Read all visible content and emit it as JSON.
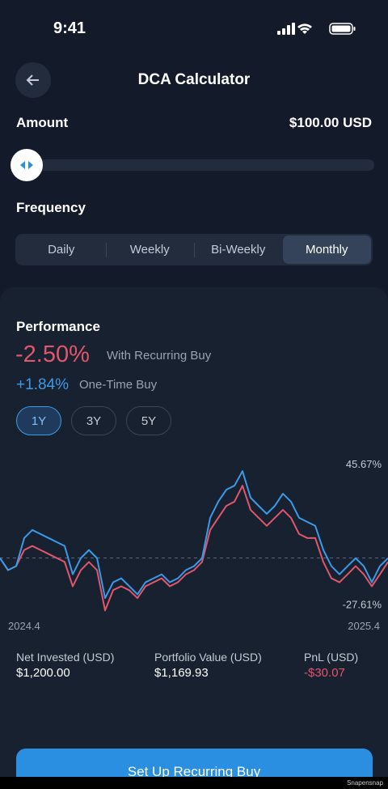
{
  "status": {
    "time": "9:41"
  },
  "header": {
    "title": "DCA Calculator"
  },
  "amount": {
    "label": "Amount",
    "value": "$100.00 USD"
  },
  "frequency": {
    "label": "Frequency",
    "options": [
      "Daily",
      "Weekly",
      "Bi-Weekly",
      "Monthly"
    ],
    "selected": 3
  },
  "performance": {
    "title": "Performance",
    "recurring": {
      "value": "-2.50%",
      "label": "With Recurring Buy"
    },
    "one_time": {
      "value": "+1.84%",
      "label": "One-Time Buy"
    },
    "periods": [
      "1Y",
      "3Y",
      "5Y"
    ],
    "selected_period": 0
  },
  "chart_data": {
    "type": "line",
    "categories": [
      "2024.4",
      null,
      null,
      null,
      null,
      null,
      null,
      null,
      null,
      null,
      null,
      null,
      null,
      null,
      null,
      null,
      null,
      null,
      null,
      null,
      null,
      null,
      null,
      null,
      null,
      null,
      null,
      null,
      null,
      null,
      null,
      null,
      null,
      null,
      null,
      null,
      null,
      null,
      null,
      null,
      null,
      null,
      null,
      null,
      null,
      null,
      null,
      null,
      "2025.4"
    ],
    "series": [
      {
        "color": "#e0566b",
        "values": [
          -0.1,
          -6.4,
          -4.3,
          4.2,
          6.3,
          4.2,
          2.1,
          0,
          -2.1,
          -14.9,
          -6.4,
          -2.1,
          -6.4,
          -27.61,
          -16.9,
          -14.9,
          -17.0,
          -21.1,
          -14.9,
          -12.8,
          -10.7,
          -14.9,
          -12.8,
          -8.6,
          -6.4,
          -2.1,
          14.7,
          21.1,
          27.4,
          29.6,
          38.0,
          25.3,
          21.1,
          16.9,
          21.1,
          25.3,
          21.1,
          12.6,
          10.5,
          10.5,
          -2.1,
          -10.7,
          -12.8,
          -8.6,
          -4.3,
          -8.6,
          -14.9,
          -8.6,
          -2.1
        ]
      },
      {
        "color": "#3b9ae8",
        "values": [
          -0.1,
          -6.4,
          -4.3,
          10.5,
          14.7,
          12.6,
          10.5,
          8.4,
          6.3,
          -8.6,
          -0.1,
          4.2,
          -0.1,
          -21.1,
          -12.8,
          -10.7,
          -14.9,
          -19.1,
          -12.8,
          -10.7,
          -8.6,
          -12.8,
          -10.7,
          -6.4,
          -4.3,
          -0.1,
          21.1,
          29.6,
          35.9,
          38.0,
          45.67,
          31.7,
          27.4,
          23.2,
          27.4,
          33.8,
          29.6,
          21.1,
          19.0,
          16.9,
          4.2,
          -4.3,
          -8.6,
          -4.3,
          -0.1,
          -4.3,
          -12.8,
          -4.3,
          -0.1
        ]
      }
    ],
    "ylim": [
      -30,
      50
    ],
    "yticks": [
      {
        "value": 45.67,
        "label": "45.67%"
      },
      {
        "value": -27.61,
        "label": "-27.61%"
      }
    ]
  },
  "stats": [
    {
      "label": "Net Invested (USD)",
      "value": "$1,200.00"
    },
    {
      "label": "Portfolio Value (USD)",
      "value": "$1,169.93"
    },
    {
      "label": "PnL (USD)",
      "value": "-$30.07"
    }
  ],
  "button": {
    "label": "Set Up Recurring Buy"
  },
  "watermark": "Snapensnap"
}
